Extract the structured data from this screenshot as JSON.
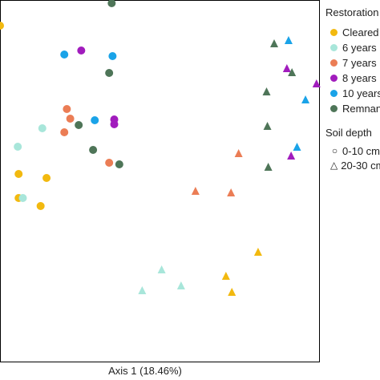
{
  "chart_data": {
    "type": "scatter",
    "xlabel": "Axis 1 (18.46%)",
    "ylabel": "",
    "legend": {
      "placement": "right",
      "restoration_title": "Restoration",
      "restoration_items": [
        {
          "label": "Cleared",
          "color": "#F2B90F"
        },
        {
          "label": "6 years",
          "color": "#A8E6DA"
        },
        {
          "label": "7 years",
          "color": "#EB7D55"
        },
        {
          "label": "8 years",
          "color": "#A11CBD"
        },
        {
          "label": "10 years",
          "color": "#1AA3E8"
        },
        {
          "label": "Remnant",
          "color": "#4E7558"
        }
      ],
      "depth_title": "Soil depth",
      "depth_items": [
        {
          "label": "0-10 cm",
          "symbol": "circle"
        },
        {
          "label": "20-30 cm",
          "symbol": "triangle"
        }
      ]
    },
    "xlim": [
      0,
      360
    ],
    "ylim": [
      0,
      450
    ],
    "series": [
      {
        "name": "Cleared",
        "color": "#F2B90F",
        "depth": "0-10 cm",
        "marker": "circle",
        "points": [
          [
            22,
            235
          ],
          [
            55,
            230
          ],
          [
            22,
            205
          ],
          [
            48,
            195
          ],
          [
            0,
            420
          ]
        ]
      },
      {
        "name": "Cleared",
        "color": "#F2B90F",
        "depth": "20-30 cm",
        "marker": "triangle",
        "points": [
          [
            305,
            138
          ],
          [
            267,
            108
          ],
          [
            274,
            88
          ]
        ]
      },
      {
        "name": "6 years",
        "color": "#A8E6DA",
        "depth": "0-10 cm",
        "marker": "circle",
        "points": [
          [
            50,
            292
          ],
          [
            21,
            269
          ],
          [
            27,
            205
          ]
        ]
      },
      {
        "name": "6 years",
        "color": "#A8E6DA",
        "depth": "20-30 cm",
        "marker": "triangle",
        "points": [
          [
            191,
            116
          ],
          [
            214,
            96
          ],
          [
            168,
            90
          ]
        ]
      },
      {
        "name": "7 years",
        "color": "#EB7D55",
        "depth": "0-10 cm",
        "marker": "circle",
        "points": [
          [
            79,
            316
          ],
          [
            83,
            304
          ],
          [
            76,
            287
          ],
          [
            129,
            249
          ]
        ]
      },
      {
        "name": "7 years",
        "color": "#EB7D55",
        "depth": "20-30 cm",
        "marker": "triangle",
        "points": [
          [
            282,
            261
          ],
          [
            231,
            214
          ],
          [
            273,
            212
          ]
        ]
      },
      {
        "name": "8 years",
        "color": "#A11CBD",
        "depth": "0-10 cm",
        "marker": "circle",
        "points": [
          [
            96,
            389
          ],
          [
            135,
            303
          ],
          [
            135,
            297
          ]
        ]
      },
      {
        "name": "8 years",
        "color": "#A11CBD",
        "depth": "20-30 cm",
        "marker": "triangle",
        "points": [
          [
            339,
            367
          ],
          [
            374,
            348
          ],
          [
            344,
            258
          ]
        ]
      },
      {
        "name": "10 years",
        "color": "#1AA3E8",
        "depth": "0-10 cm",
        "marker": "circle",
        "points": [
          [
            76,
            384
          ],
          [
            133,
            382
          ],
          [
            112,
            302
          ]
        ]
      },
      {
        "name": "10 years",
        "color": "#1AA3E8",
        "depth": "20-30 cm",
        "marker": "triangle",
        "points": [
          [
            341,
            402
          ],
          [
            361,
            328
          ],
          [
            351,
            269
          ]
        ]
      },
      {
        "name": "Remnant",
        "color": "#4E7558",
        "depth": "0-10 cm",
        "marker": "circle",
        "points": [
          [
            132,
            448
          ],
          [
            129,
            361
          ],
          [
            93,
            296
          ],
          [
            110,
            265
          ],
          [
            141,
            247
          ]
        ]
      },
      {
        "name": "Remnant",
        "color": "#4E7558",
        "depth": "20-30 cm",
        "marker": "triangle",
        "points": [
          [
            324,
            398
          ],
          [
            345,
            362
          ],
          [
            315,
            338
          ],
          [
            316,
            295
          ],
          [
            317,
            244
          ]
        ]
      }
    ]
  }
}
